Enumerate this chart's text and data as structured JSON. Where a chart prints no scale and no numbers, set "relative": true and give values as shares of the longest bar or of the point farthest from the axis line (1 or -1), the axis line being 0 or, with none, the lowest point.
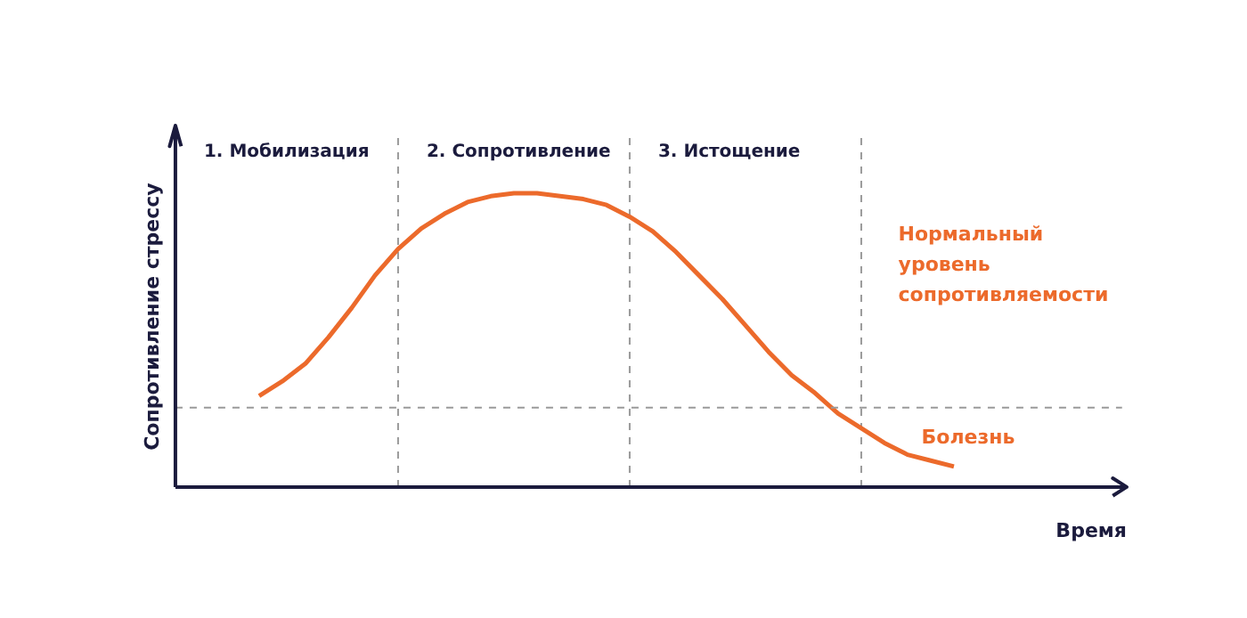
{
  "chart_data": {
    "type": "line",
    "relative": true,
    "ylabel": "Сопротивление стрессу",
    "xlabel": "Время",
    "categories": [
      null,
      null,
      null,
      null,
      null,
      null,
      null,
      null,
      null,
      null,
      null,
      null,
      null,
      null,
      null,
      null,
      null,
      null,
      null,
      null,
      null,
      null,
      null,
      null,
      null,
      null,
      null,
      null,
      null,
      null,
      null
    ],
    "series": [
      {
        "color": "#ec6a2b",
        "values": [
          0.31,
          0.36,
          0.42,
          0.51,
          0.61,
          0.72,
          0.81,
          0.88,
          0.93,
          0.97,
          0.99,
          1,
          1,
          0.99,
          0.98,
          0.96,
          0.92,
          0.87,
          0.8,
          0.72,
          0.64,
          0.55,
          0.46,
          0.38,
          0.32,
          0.25,
          0.2,
          0.15,
          0.11,
          0.09,
          0.07
        ]
      }
    ],
    "ref_lines": [
      {
        "axis": "y",
        "value": 0.27,
        "color": "#9a9a9a",
        "line_style": "dashed"
      }
    ],
    "annotations": [
      "1. Мобилизация",
      "2. Сопротивление",
      "3. Истощение",
      "Нормальный уровень сопротивляемости",
      "Болезнь"
    ],
    "grid": "x",
    "line_style": "solid",
    "marker": "none"
  }
}
